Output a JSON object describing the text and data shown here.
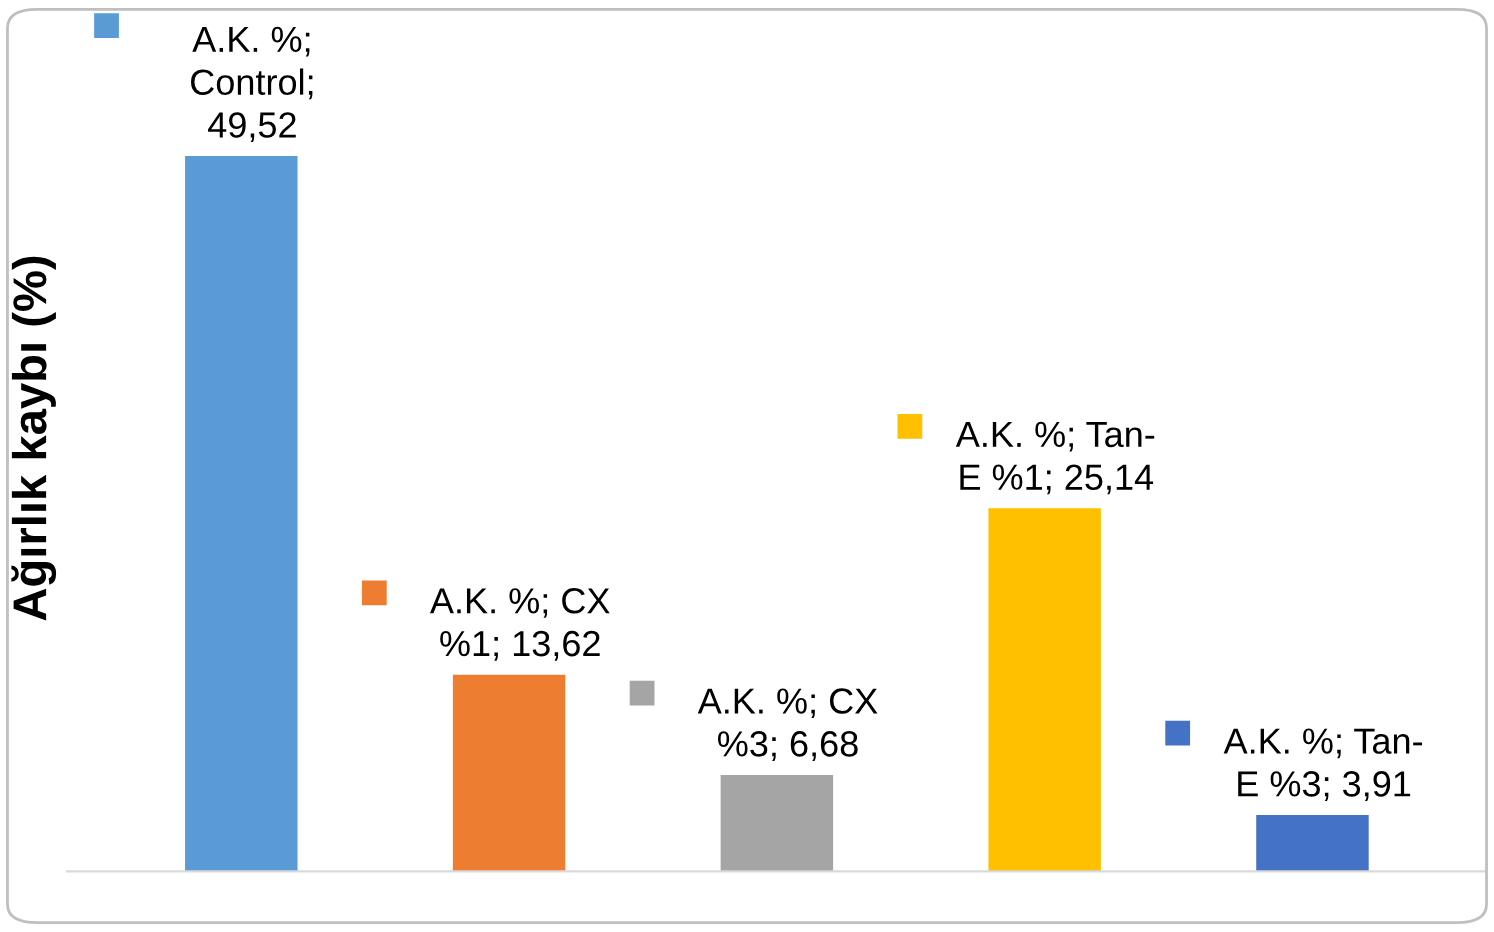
{
  "chart_data": {
    "type": "bar",
    "ylabel": "Ağırlık kaybı (%)",
    "categories": [
      null,
      null,
      null,
      null,
      null
    ],
    "values": [
      49.52,
      13.62,
      6.68,
      25.14,
      3.91
    ],
    "colors": [
      "#5b9bd5",
      "#ed7d31",
      "#a5a5a5",
      "#ffc000",
      "#4472c4"
    ],
    "value_labels": [
      "A.K. %;\nControl;\n49,52",
      "A.K. %; CX\n%1; 13,62",
      "A.K. %; CX\n%3; 6,68",
      "A.K. %; Tan-\nE %1; 25,14",
      "A.K. %; Tan-\nE %3; 3,91"
    ],
    "ylim": [
      0,
      60
    ],
    "grid": false,
    "legend": false
  }
}
